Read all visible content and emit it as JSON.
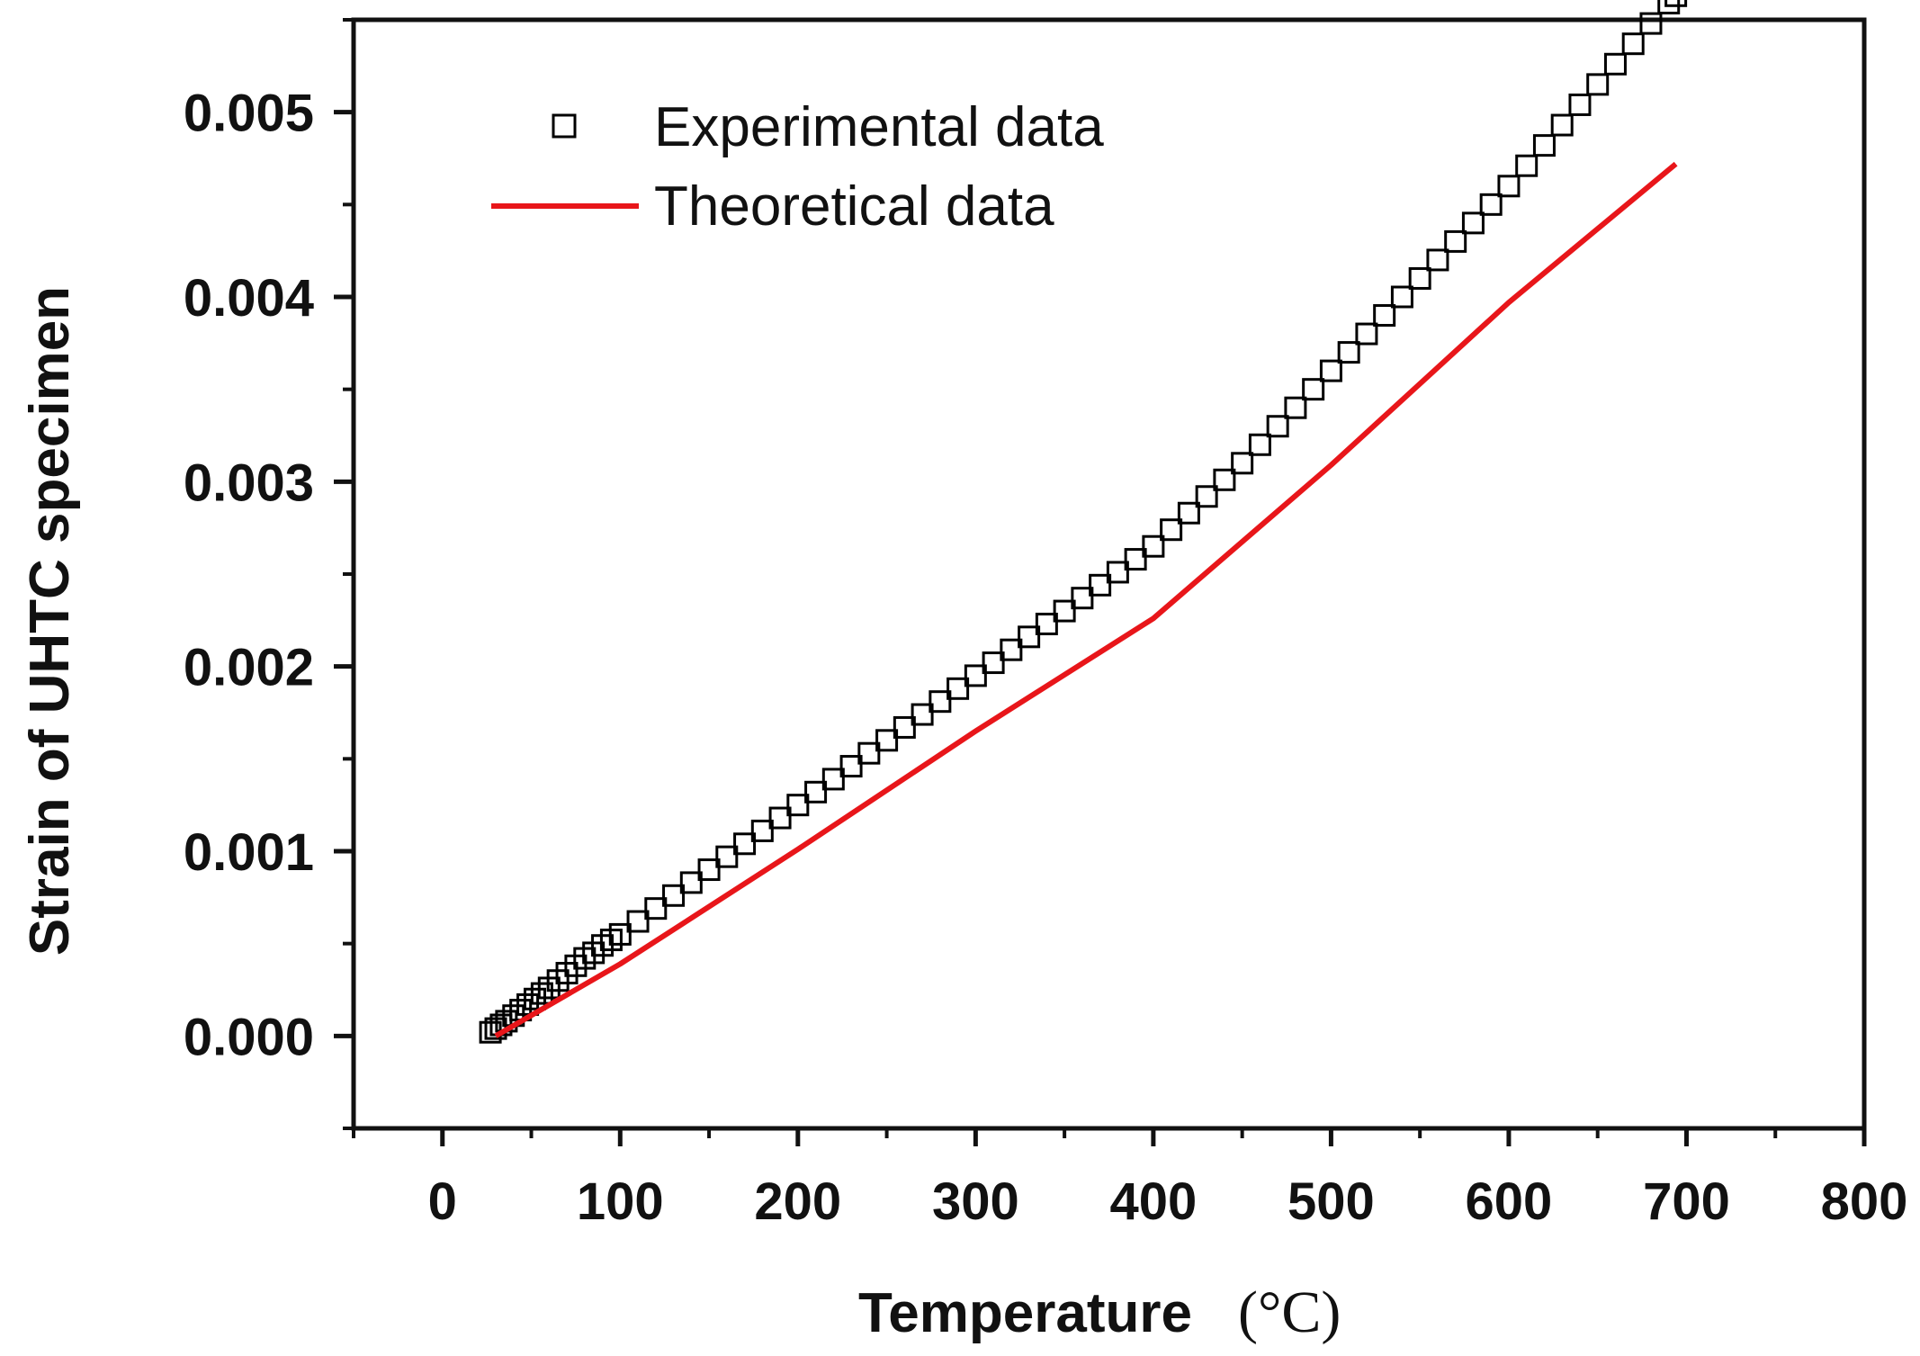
{
  "chart_data": {
    "type": "scatter",
    "title": "",
    "xlabel": "Temperature",
    "xlabel_unit": "(°C)",
    "ylabel": "Strain of UHTC specimen",
    "xlim": [
      -50,
      800
    ],
    "ylim": [
      -0.0005,
      0.0055
    ],
    "x_ticks": [
      0,
      100,
      200,
      300,
      400,
      500,
      600,
      700,
      800
    ],
    "x_tick_labels": [
      "0",
      "100",
      "200",
      "300",
      "400",
      "500",
      "600",
      "700",
      "800"
    ],
    "y_ticks": [
      0.0,
      0.001,
      0.002,
      0.003,
      0.004,
      0.005
    ],
    "y_tick_labels": [
      "0.000",
      "0.001",
      "0.002",
      "0.003",
      "0.004",
      "0.005"
    ],
    "grid": false,
    "legend_position": "top-left",
    "series": [
      {
        "name": "Experimental data",
        "marker": "open-square",
        "color": "#000000",
        "x": [
          27,
          30,
          33,
          36,
          40,
          44,
          48,
          52,
          56,
          60,
          65,
          70,
          75,
          80,
          85,
          90,
          95,
          100,
          110,
          120,
          130,
          140,
          150,
          160,
          170,
          180,
          190,
          200,
          210,
          220,
          230,
          240,
          250,
          260,
          270,
          280,
          290,
          300,
          310,
          320,
          330,
          340,
          350,
          360,
          370,
          380,
          390,
          400,
          410,
          420,
          430,
          440,
          450,
          460,
          470,
          480,
          490,
          500,
          510,
          520,
          530,
          540,
          550,
          560,
          570,
          580,
          590,
          600,
          610,
          620,
          630,
          640,
          650,
          660,
          670,
          680,
          690,
          694
        ],
        "y": [
          2e-05,
          4e-05,
          6e-05,
          8e-05,
          0.00011,
          0.00014,
          0.00017,
          0.0002,
          0.00023,
          0.00026,
          0.0003,
          0.00034,
          0.00038,
          0.00042,
          0.00045,
          0.00049,
          0.00052,
          0.00055,
          0.00062,
          0.00069,
          0.00076,
          0.00083,
          0.0009,
          0.00097,
          0.00104,
          0.00111,
          0.00118,
          0.00125,
          0.00132,
          0.00139,
          0.00146,
          0.00153,
          0.0016,
          0.00167,
          0.00174,
          0.00181,
          0.00188,
          0.00195,
          0.00202,
          0.00209,
          0.00216,
          0.00223,
          0.0023,
          0.00237,
          0.00244,
          0.00251,
          0.00258,
          0.00265,
          0.00274,
          0.00283,
          0.00292,
          0.00301,
          0.0031,
          0.0032,
          0.0033,
          0.0034,
          0.0035,
          0.0036,
          0.0037,
          0.0038,
          0.0039,
          0.004,
          0.0041,
          0.0042,
          0.0043,
          0.0044,
          0.0045,
          0.0046,
          0.00471,
          0.00482,
          0.00493,
          0.00504,
          0.00515,
          0.00526,
          0.00537,
          0.00548,
          0.00559,
          0.00563
        ]
      },
      {
        "name": "Theoretical data",
        "marker": "line",
        "color": "#e8161a",
        "x": [
          30,
          100,
          200,
          300,
          400,
          500,
          600,
          694
        ],
        "y": [
          0.0,
          0.00039,
          0.00101,
          0.00165,
          0.00226,
          0.00309,
          0.00397,
          0.00472
        ]
      }
    ]
  }
}
